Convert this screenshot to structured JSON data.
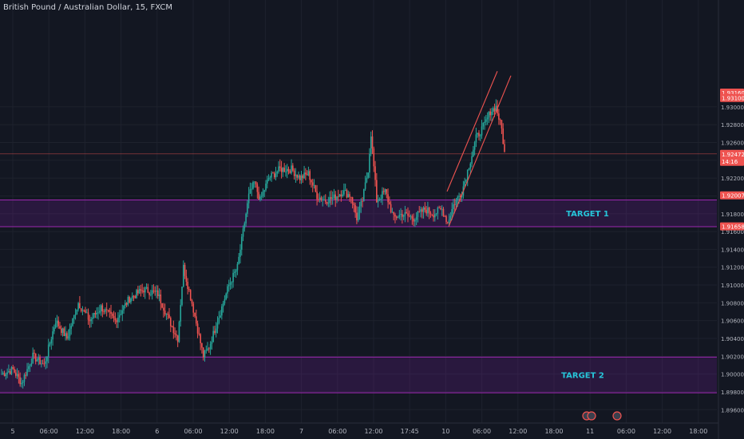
{
  "header": {
    "title": "British Pound / Australian Dollar, 15, FXCM"
  },
  "colors": {
    "up": "#26a69a",
    "down": "#ef5350",
    "zone": "#7b1fa2",
    "zone_label": "#26c6da",
    "bg": "#131722",
    "grid": "#1e222d",
    "channel": "#ef5350"
  },
  "chart_data": {
    "type": "candlestick",
    "symbol": "GBPAUD",
    "interval": "15",
    "ylim": [
      1.8945,
      1.942
    ],
    "y_ticks": [
      1.896,
      1.898,
      1.9,
      1.902,
      1.904,
      1.906,
      1.908,
      1.91,
      1.912,
      1.914,
      1.916,
      1.918,
      1.92,
      1.922,
      1.924,
      1.926,
      1.928,
      1.93
    ],
    "y_tick_labels": [
      "1.89600",
      "1.89800",
      "1.90000",
      "1.90200",
      "1.90400",
      "1.90600",
      "1.90800",
      "1.91000",
      "1.91200",
      "1.91400",
      "1.91600",
      "1.91800",
      "1.92000",
      "1.92200",
      "1.92400",
      "1.92600",
      "1.92800",
      "1.93000"
    ],
    "x_tick_labels": [
      "5",
      "06:00",
      "12:00",
      "18:00",
      "6",
      "06:00",
      "12:00",
      "18:00",
      "7",
      "06:00",
      "12:00",
      "17:45",
      "10",
      "06:00",
      "12:00",
      "18:00",
      "11",
      "06:00",
      "12:00",
      "18:00"
    ],
    "price_badges": [
      {
        "label": "1.93160",
        "value": 1.9316
      },
      {
        "label": "1.93100",
        "value": 1.931
      },
      {
        "label": "1.92472",
        "value": 1.92472,
        "sub": "14:16"
      },
      {
        "label": "1.92007",
        "value": 1.92007
      },
      {
        "label": "1.91658",
        "value": 1.91658
      }
    ],
    "current_price": 1.92472,
    "zones": [
      {
        "label": "TARGET 1",
        "top": 1.91955,
        "bottom": 1.91655
      },
      {
        "label": "TARGET 2",
        "top": 1.9019,
        "bottom": 1.8979
      }
    ],
    "anchors": [
      [
        0,
        1.9
      ],
      [
        8,
        1.9005
      ],
      [
        14,
        1.899
      ],
      [
        22,
        1.902
      ],
      [
        30,
        1.901
      ],
      [
        38,
        1.906
      ],
      [
        46,
        1.904
      ],
      [
        54,
        1.908
      ],
      [
        62,
        1.906
      ],
      [
        70,
        1.9075
      ],
      [
        80,
        1.906
      ],
      [
        90,
        1.9085
      ],
      [
        100,
        1.9095
      ],
      [
        110,
        1.909
      ],
      [
        118,
        1.906
      ],
      [
        124,
        1.904
      ],
      [
        128,
        1.912
      ],
      [
        134,
        1.908
      ],
      [
        142,
        1.902
      ],
      [
        146,
        1.903
      ],
      [
        152,
        1.906
      ],
      [
        160,
        1.91
      ],
      [
        166,
        1.912
      ],
      [
        170,
        1.916
      ],
      [
        174,
        1.92
      ],
      [
        178,
        1.9215
      ],
      [
        182,
        1.9195
      ],
      [
        188,
        1.922
      ],
      [
        196,
        1.923
      ],
      [
        204,
        1.923
      ],
      [
        210,
        1.922
      ],
      [
        216,
        1.9225
      ],
      [
        222,
        1.92
      ],
      [
        228,
        1.9195
      ],
      [
        234,
        1.9198
      ],
      [
        240,
        1.9205
      ],
      [
        246,
        1.92
      ],
      [
        250,
        1.9175
      ],
      [
        254,
        1.9195
      ],
      [
        258,
        1.923
      ],
      [
        260,
        1.927
      ],
      [
        264,
        1.9195
      ],
      [
        270,
        1.9205
      ],
      [
        276,
        1.9175
      ],
      [
        282,
        1.918
      ],
      [
        290,
        1.9175
      ],
      [
        298,
        1.9185
      ],
      [
        304,
        1.918
      ],
      [
        310,
        1.9185
      ],
      [
        314,
        1.917
      ],
      [
        318,
        1.919
      ],
      [
        324,
        1.9205
      ],
      [
        330,
        1.924
      ],
      [
        334,
        1.9265
      ],
      [
        340,
        1.928
      ],
      [
        344,
        1.9295
      ],
      [
        348,
        1.93
      ],
      [
        352,
        1.9275
      ],
      [
        354,
        1.9248
      ]
    ],
    "series": {
      "candles_ohlc": "generated deterministically from anchors in script"
    }
  }
}
